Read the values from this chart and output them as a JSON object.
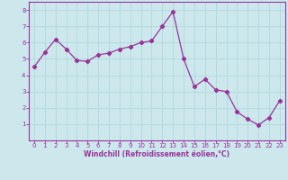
{
  "x": [
    0,
    1,
    2,
    3,
    4,
    5,
    6,
    7,
    8,
    9,
    10,
    11,
    12,
    13,
    14,
    15,
    16,
    17,
    18,
    19,
    20,
    21,
    22,
    23
  ],
  "y": [
    4.5,
    5.4,
    6.2,
    5.6,
    4.9,
    4.85,
    5.25,
    5.35,
    5.6,
    5.75,
    6.0,
    6.1,
    7.0,
    7.9,
    5.0,
    3.3,
    3.75,
    3.1,
    3.0,
    1.75,
    1.3,
    0.95,
    1.4,
    2.45
  ],
  "line_color": "#993399",
  "marker": "D",
  "marker_size": 2.2,
  "bg_color": "#cce8ec",
  "grid_color": "#b0d8de",
  "border_color": "#993399",
  "xlabel": "Windchill (Refroidissement éolien,°C)",
  "xlabel_color": "#993399",
  "tick_color": "#993399",
  "ylim": [
    0,
    8.5
  ],
  "xlim": [
    -0.5,
    23.5
  ],
  "yticks": [
    1,
    2,
    3,
    4,
    5,
    6,
    7,
    8
  ],
  "xticks": [
    0,
    1,
    2,
    3,
    4,
    5,
    6,
    7,
    8,
    9,
    10,
    11,
    12,
    13,
    14,
    15,
    16,
    17,
    18,
    19,
    20,
    21,
    22,
    23
  ],
  "tick_fontsize": 5.0,
  "xlabel_fontsize": 5.5
}
